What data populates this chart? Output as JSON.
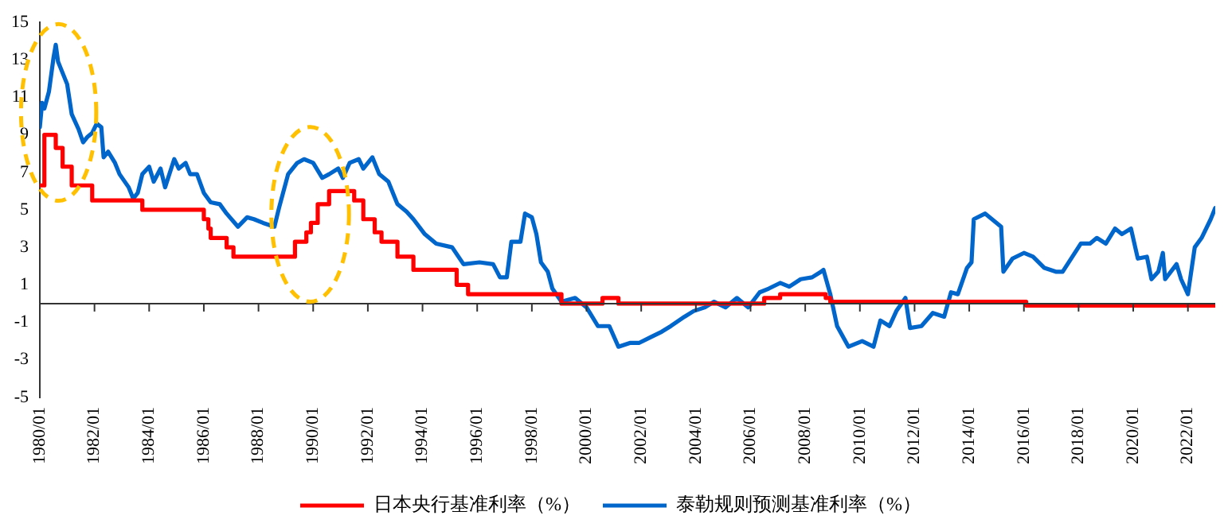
{
  "chart_data": {
    "type": "line",
    "legend": "bottom",
    "line_style": "solid",
    "xlim": [
      "1980-01",
      "2023-01"
    ],
    "xticks": [
      {
        "value": "1980-01",
        "label": "1980/01"
      },
      {
        "value": "1982-01",
        "label": "1982/01"
      },
      {
        "value": "1984-01",
        "label": "1984/01"
      },
      {
        "value": "1986-01",
        "label": "1986/01"
      },
      {
        "value": "1988-01",
        "label": "1988/01"
      },
      {
        "value": "1990-01",
        "label": "1990/01"
      },
      {
        "value": "1992-01",
        "label": "1992/01"
      },
      {
        "value": "1994-01",
        "label": "1994/01"
      },
      {
        "value": "1996-01",
        "label": "1996/01"
      },
      {
        "value": "1998-01",
        "label": "1998/01"
      },
      {
        "value": "2000-01",
        "label": "2000/01"
      },
      {
        "value": "2002-01",
        "label": "2002/01"
      },
      {
        "value": "2004-01",
        "label": "2004/01"
      },
      {
        "value": "2006-01",
        "label": "2006/01"
      },
      {
        "value": "2008-01",
        "label": "2008/01"
      },
      {
        "value": "2010-01",
        "label": "2010/01"
      },
      {
        "value": "2012-01",
        "label": "2012/01"
      },
      {
        "value": "2014-01",
        "label": "2014/01"
      },
      {
        "value": "2016-01",
        "label": "2016/01"
      },
      {
        "value": "2018-01",
        "label": "2018/01"
      },
      {
        "value": "2020-01",
        "label": "2020/01"
      },
      {
        "value": "2022-01",
        "label": "2022/01"
      }
    ],
    "ylim": [
      -5,
      15
    ],
    "yticks": [
      -5,
      -3,
      -1,
      1,
      3,
      5,
      7,
      9,
      11,
      13,
      15
    ],
    "series": [
      {
        "name": "日本央行基准利率（%）",
        "type": "step",
        "color": "#ff0000",
        "x": [
          "1980-01",
          "1980-03",
          "1980-08",
          "1980-11",
          "1981-03",
          "1981-12",
          "1983-10",
          "1986-01",
          "1986-03",
          "1986-04",
          "1986-11",
          "1987-02",
          "1989-05",
          "1989-10",
          "1989-12",
          "1990-03",
          "1990-08",
          "1991-07",
          "1991-11",
          "1992-04",
          "1992-07",
          "1993-02",
          "1993-09",
          "1995-04",
          "1995-09",
          "1999-02",
          "2000-08",
          "2001-03",
          "2006-07",
          "2007-02",
          "2008-10",
          "2008-12",
          "2016-02",
          "2023-01"
        ],
        "values": [
          6.3,
          9.0,
          8.3,
          7.3,
          6.3,
          5.5,
          5.0,
          4.5,
          4.0,
          3.5,
          3.0,
          2.5,
          3.3,
          3.8,
          4.3,
          5.3,
          6.0,
          5.5,
          4.5,
          3.8,
          3.3,
          2.5,
          1.8,
          1.0,
          0.5,
          0.0,
          0.3,
          0.0,
          0.3,
          0.5,
          0.3,
          0.1,
          -0.1,
          -0.1
        ]
      },
      {
        "name": "泰勒规则预测基准利率（%）",
        "type": "line",
        "color": "#0066cc",
        "x": [
          "1980-01",
          "1980-02",
          "1980-03",
          "1980-05",
          "1980-07",
          "1980-08",
          "1980-09",
          "1980-10",
          "1981-01",
          "1981-03",
          "1981-06",
          "1981-08",
          "1981-10",
          "1981-12",
          "1982-02",
          "1982-04",
          "1982-05",
          "1982-07",
          "1982-10",
          "1982-12",
          "1983-04",
          "1983-06",
          "1983-08",
          "1983-10",
          "1984-01",
          "1984-03",
          "1984-06",
          "1984-08",
          "1984-12",
          "1985-02",
          "1985-05",
          "1985-07",
          "1985-10",
          "1986-01",
          "1986-04",
          "1986-08",
          "1986-11",
          "1987-04",
          "1987-08",
          "1987-11",
          "1988-03",
          "1988-08",
          "1988-10",
          "1989-02",
          "1989-06",
          "1989-09",
          "1990-01",
          "1990-05",
          "1990-08",
          "1990-12",
          "1991-02",
          "1991-05",
          "1991-09",
          "1991-11",
          "1992-03",
          "1992-06",
          "1992-10",
          "1993-02",
          "1993-06",
          "1993-09",
          "1994-02",
          "1994-07",
          "1995-02",
          "1995-07",
          "1996-02",
          "1996-08",
          "1996-11",
          "1997-02",
          "1997-04",
          "1997-08",
          "1997-10",
          "1998-01",
          "1998-03",
          "1998-05",
          "1998-08",
          "1998-10",
          "1999-02",
          "1999-08",
          "2000-01",
          "2000-06",
          "2000-11",
          "2001-03",
          "2001-08",
          "2001-12",
          "2002-05",
          "2002-10",
          "2003-02",
          "2003-08",
          "2003-12",
          "2004-05",
          "2004-09",
          "2005-02",
          "2005-07",
          "2005-12",
          "2006-05",
          "2006-09",
          "2007-02",
          "2007-06",
          "2007-11",
          "2008-04",
          "2008-08",
          "2008-09",
          "2008-12",
          "2009-03",
          "2009-08",
          "2010-02",
          "2010-07",
          "2010-10",
          "2011-02",
          "2011-05",
          "2011-09",
          "2011-11",
          "2012-04",
          "2012-09",
          "2013-02",
          "2013-05",
          "2013-08",
          "2013-12",
          "2014-02",
          "2014-03",
          "2014-08",
          "2015-01",
          "2015-03",
          "2015-04",
          "2015-08",
          "2016-01",
          "2016-05",
          "2016-10",
          "2017-03",
          "2017-06",
          "2018-02",
          "2018-06",
          "2018-09",
          "2019-01",
          "2019-05",
          "2019-08",
          "2019-12",
          "2020-03",
          "2020-07",
          "2020-09",
          "2020-12",
          "2021-02",
          "2021-03",
          "2021-08",
          "2021-10",
          "2022-01",
          "2022-04",
          "2022-07",
          "2022-11",
          "2023-01"
        ],
        "values": [
          9.4,
          10.7,
          10.4,
          11.3,
          13.1,
          13.8,
          12.9,
          12.6,
          11.7,
          10.1,
          9.3,
          8.6,
          8.9,
          9.1,
          9.6,
          9.4,
          7.8,
          8.1,
          7.5,
          6.9,
          6.2,
          5.6,
          5.9,
          6.9,
          7.3,
          6.5,
          7.2,
          6.2,
          7.7,
          7.2,
          7.5,
          6.9,
          6.9,
          5.9,
          5.4,
          5.3,
          4.8,
          4.1,
          4.6,
          4.5,
          4.3,
          4.1,
          5.1,
          6.9,
          7.5,
          7.7,
          7.5,
          6.7,
          6.9,
          7.2,
          6.7,
          7.5,
          7.7,
          7.2,
          7.8,
          6.9,
          6.5,
          5.3,
          4.9,
          4.5,
          3.7,
          3.2,
          3.0,
          2.1,
          2.2,
          2.1,
          1.4,
          1.4,
          3.3,
          3.3,
          4.8,
          4.6,
          3.7,
          2.2,
          1.7,
          0.8,
          0.1,
          0.3,
          -0.2,
          -1.2,
          -1.2,
          -2.3,
          -2.1,
          -2.1,
          -1.8,
          -1.5,
          -1.2,
          -0.7,
          -0.4,
          -0.2,
          0.1,
          -0.2,
          0.3,
          -0.2,
          0.6,
          0.8,
          1.1,
          0.9,
          1.3,
          1.4,
          1.7,
          1.8,
          0.5,
          -1.2,
          -2.3,
          -2.0,
          -2.3,
          -0.9,
          -1.2,
          -0.4,
          0.3,
          -1.3,
          -1.2,
          -0.5,
          -0.7,
          0.6,
          0.5,
          1.9,
          2.2,
          4.5,
          4.8,
          4.3,
          4.1,
          1.7,
          2.4,
          2.7,
          2.5,
          1.9,
          1.7,
          1.7,
          3.2,
          3.2,
          3.5,
          3.2,
          4.0,
          3.7,
          4.0,
          2.4,
          2.5,
          1.3,
          1.7,
          2.7,
          1.3,
          2.1,
          1.3,
          0.5,
          3.0,
          3.5,
          4.5,
          5.1
        ]
      }
    ]
  }
}
